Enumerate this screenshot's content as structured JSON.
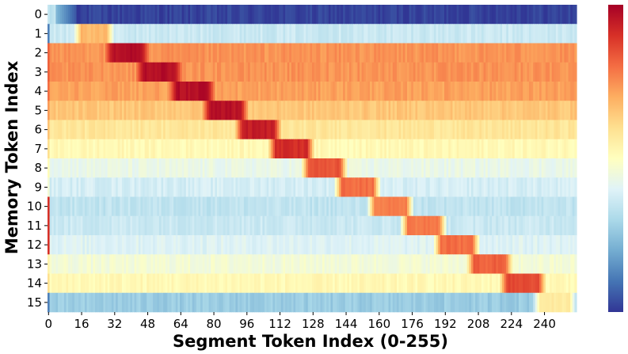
{
  "chart_data": {
    "type": "heatmap",
    "title": "",
    "xlabel": "Segment Token Index (0-255)",
    "ylabel": "Memory Token Index",
    "x_range": [
      0,
      255
    ],
    "y_range": [
      0,
      15
    ],
    "xticks": [
      "0",
      "16",
      "32",
      "48",
      "64",
      "80",
      "96",
      "112",
      "128",
      "144",
      "160",
      "176",
      "192",
      "208",
      "224",
      "240"
    ],
    "yticks": [
      "0",
      "1",
      "2",
      "3",
      "4",
      "5",
      "6",
      "7",
      "8",
      "9",
      "10",
      "11",
      "12",
      "13",
      "14",
      "15"
    ],
    "colormap": "RdYlBu_r",
    "colormap_stops": [
      "#313695",
      "#4575b4",
      "#74add1",
      "#abd9e9",
      "#e0f3f8",
      "#ffffbf",
      "#fee090",
      "#fdae61",
      "#f46d43",
      "#d73027",
      "#a50026"
    ],
    "colorbar": true,
    "rows": [
      {
        "row": 0,
        "base": 0.02,
        "peak_start": null,
        "peak_end": null,
        "peak_value": null
      },
      {
        "row": 1,
        "base": 0.36,
        "peak_start": 16,
        "peak_end": 28,
        "peak_value": 0.7
      },
      {
        "row": 2,
        "base": 0.74,
        "peak_start": 31,
        "peak_end": 45,
        "peak_value": 0.99
      },
      {
        "row": 3,
        "base": 0.74,
        "peak_start": 46,
        "peak_end": 61,
        "peak_value": 0.99
      },
      {
        "row": 4,
        "base": 0.72,
        "peak_start": 62,
        "peak_end": 77,
        "peak_value": 0.99
      },
      {
        "row": 5,
        "base": 0.65,
        "peak_start": 78,
        "peak_end": 93,
        "peak_value": 0.98
      },
      {
        "row": 6,
        "base": 0.58,
        "peak_start": 94,
        "peak_end": 109,
        "peak_value": 0.96
      },
      {
        "row": 7,
        "base": 0.52,
        "peak_start": 110,
        "peak_end": 125,
        "peak_value": 0.93
      },
      {
        "row": 8,
        "base": 0.43,
        "peak_start": 126,
        "peak_end": 141,
        "peak_value": 0.86
      },
      {
        "row": 9,
        "base": 0.38,
        "peak_start": 142,
        "peak_end": 157,
        "peak_value": 0.82
      },
      {
        "row": 10,
        "base": 0.34,
        "peak_start": 158,
        "peak_end": 173,
        "peak_value": 0.8
      },
      {
        "row": 11,
        "base": 0.36,
        "peak_start": 174,
        "peak_end": 189,
        "peak_value": 0.8
      },
      {
        "row": 12,
        "base": 0.4,
        "peak_start": 190,
        "peak_end": 205,
        "peak_value": 0.82
      },
      {
        "row": 13,
        "base": 0.46,
        "peak_start": 206,
        "peak_end": 221,
        "peak_value": 0.84
      },
      {
        "row": 14,
        "base": 0.52,
        "peak_start": 222,
        "peak_end": 237,
        "peak_value": 0.88
      },
      {
        "row": 15,
        "base": 0.27,
        "peak_start": 238,
        "peak_end": 252,
        "peak_value": 0.58
      }
    ]
  }
}
